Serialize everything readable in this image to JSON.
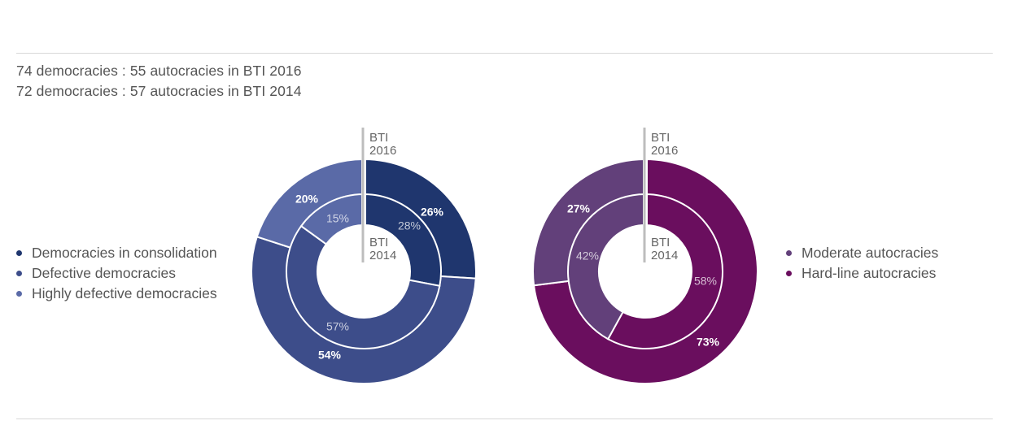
{
  "subtitles": [
    "74 democracies : 55 autocracies in BTI 2016",
    "72 democracies : 57 autocracies in BTI 2014"
  ],
  "chart_data": [
    {
      "type": "pie",
      "rings": [
        {
          "name": "BTI 2016",
          "label_lines": [
            "BTI",
            "2016"
          ],
          "position": "outer",
          "values": [
            26,
            54,
            20
          ]
        },
        {
          "name": "BTI 2014",
          "label_lines": [
            "BTI",
            "2014"
          ],
          "position": "inner",
          "values": [
            28,
            57,
            15
          ]
        }
      ],
      "series": [
        {
          "name": "Democracies in consolidation",
          "color": "#1f366e",
          "values": [
            26,
            28
          ]
        },
        {
          "name": "Defective democracies",
          "color": "#3d4d8a",
          "values": [
            54,
            57
          ]
        },
        {
          "name": "Highly defective democracies",
          "color": "#5a6aa7",
          "values": [
            20,
            15
          ]
        }
      ],
      "unit": "%",
      "legend_placement": "left"
    },
    {
      "type": "pie",
      "rings": [
        {
          "name": "BTI 2016",
          "label_lines": [
            "BTI",
            "2016"
          ],
          "position": "outer",
          "values": [
            73,
            27
          ]
        },
        {
          "name": "BTI 2014",
          "label_lines": [
            "BTI",
            "2014"
          ],
          "position": "inner",
          "values": [
            58,
            42
          ]
        }
      ],
      "series": [
        {
          "name": "Hard-line autocracies",
          "color": "#6a0e5e",
          "values": [
            73,
            58
          ]
        },
        {
          "name": "Moderate autocracies",
          "color": "#62407a",
          "values": [
            27,
            42
          ]
        }
      ],
      "legend_order": [
        "Moderate autocracies",
        "Hard-line autocracies"
      ],
      "unit": "%",
      "legend_placement": "right"
    }
  ]
}
